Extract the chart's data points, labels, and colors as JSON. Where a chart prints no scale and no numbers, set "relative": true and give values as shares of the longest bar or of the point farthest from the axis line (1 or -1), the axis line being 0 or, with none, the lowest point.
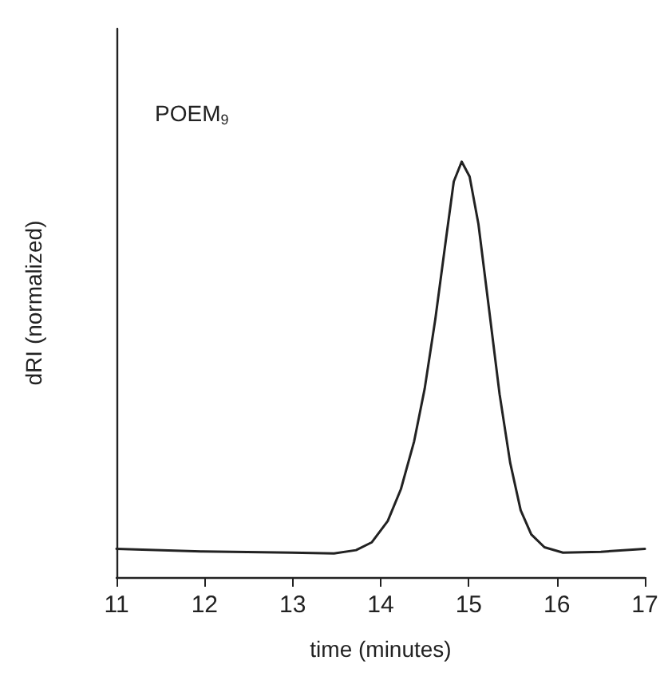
{
  "chart_data": {
    "type": "line",
    "xlabel": "time (minutes)",
    "ylabel": "dRI (normalized)",
    "relative": true,
    "annotations": [
      "POEM$_{9}$"
    ],
    "xlim": [
      11,
      17
    ],
    "xticks": [
      11,
      12,
      13,
      14,
      15,
      16,
      17
    ],
    "grid": false,
    "marker": "none",
    "line_style": "solid",
    "series": [
      {
        "color": "#222222",
        "x": [
          11.0,
          11.96,
          12.99,
          13.47,
          13.72,
          13.9,
          14.08,
          14.23,
          14.38,
          14.5,
          14.62,
          14.74,
          14.83,
          14.92,
          15.01,
          15.11,
          15.23,
          15.35,
          15.47,
          15.59,
          15.71,
          15.86,
          16.07,
          16.5,
          17.0
        ],
        "values": [
          0.068,
          0.062,
          0.059,
          0.057,
          0.065,
          0.084,
          0.135,
          0.212,
          0.327,
          0.454,
          0.62,
          0.811,
          0.952,
          1.0,
          0.964,
          0.85,
          0.646,
          0.441,
          0.276,
          0.161,
          0.103,
          0.072,
          0.059,
          0.061,
          0.068
        ]
      }
    ]
  }
}
